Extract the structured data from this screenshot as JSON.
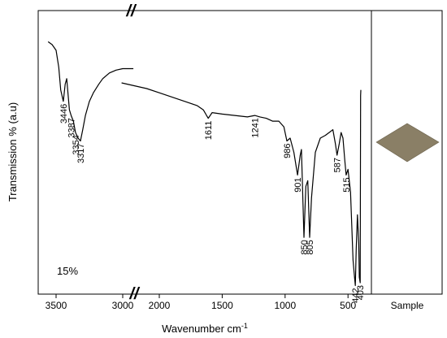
{
  "chart_data": {
    "type": "line",
    "title": "",
    "xlabel": "Wavenumber cm",
    "xlabel_superscript": "-1",
    "ylabel": "Transmission % (a.u)",
    "concentration_label": "15%",
    "sample_panel_label": "Sample",
    "sample_swatch_color": "#8a7f66",
    "axis_break_marker": "//",
    "x_axis_reversed": true,
    "x_axis_break": [
      2900,
      2300
    ],
    "xlim_segment_left": [
      3700,
      2900
    ],
    "xlim_segment_right": [
      2300,
      250
    ],
    "ylim": [
      0,
      100
    ],
    "grid": false,
    "legend": "none",
    "x_ticks": [
      {
        "value": 3500,
        "label": "3500"
      },
      {
        "value": 3000,
        "label": "3000"
      },
      {
        "value": 2000,
        "label": "2000"
      },
      {
        "value": 1500,
        "label": "1500"
      },
      {
        "value": 1000,
        "label": "1000"
      },
      {
        "value": 500,
        "label": "500"
      }
    ],
    "series": [
      {
        "color": "#000000",
        "segments": [
          {
            "x": [
              3560,
              3530,
              3500,
              3480,
              3465,
              3446,
              3432,
              3420,
              3400,
              3387,
              3370,
              3354,
              3335,
              3317,
              3300,
              3280,
              3250,
              3220,
              3180,
              3150,
              3100,
              3050,
              3000,
              2950,
              2920
            ],
            "y": [
              89,
              88,
              86,
              80,
              72,
              68,
              74,
              76,
              65,
              63,
              61,
              57,
              55,
              54,
              58,
              63,
              68,
              71,
              74,
              76,
              78,
              79,
              79.5,
              79.5,
              79.5
            ]
          },
          {
            "x": [
              2300,
              2200,
              2100,
              2000,
              1900,
              1800,
              1700,
              1650,
              1611,
              1580,
              1500,
              1400,
              1300,
              1241,
              1200,
              1150,
              1100,
              1050,
              1010,
              986,
              960,
              930,
              901,
              880,
              870,
              850,
              835,
              820,
              805,
              790,
              760,
              720,
              680,
              650,
              620,
              600,
              587,
              570,
              555,
              540,
              525,
              515,
              500,
              480,
              460,
              448,
              442,
              435,
              425,
              415,
              410,
              403,
              400,
              398
            ],
            "y": [
              74.5,
              73.5,
              72.5,
              71,
              69.5,
              68,
              66.5,
              65,
              62,
              64,
              63.5,
              63,
              62.5,
              63,
              62.5,
              62,
              61,
              61,
              59,
              54,
              55,
              50,
              42,
              49,
              51,
              20,
              38,
              40,
              20,
              34,
              50,
              55,
              56,
              57,
              58,
              53,
              49,
              53,
              57,
              55,
              47,
              42,
              44,
              36,
              12,
              6,
              3,
              16,
              28,
              18,
              6,
              4,
              70,
              72
            ]
          }
        ]
      }
    ],
    "annotations": [
      {
        "text": "3446",
        "x": 3446
      },
      {
        "text": "3387",
        "x": 3387
      },
      {
        "text": "3354",
        "x": 3354
      },
      {
        "text": "3317",
        "x": 3317
      },
      {
        "text": "1611",
        "x": 1611
      },
      {
        "text": "1241",
        "x": 1241
      },
      {
        "text": "986",
        "x": 986
      },
      {
        "text": "901",
        "x": 901
      },
      {
        "text": "850",
        "x": 850
      },
      {
        "text": "805",
        "x": 805
      },
      {
        "text": "587",
        "x": 587
      },
      {
        "text": "515",
        "x": 515
      },
      {
        "text": "442",
        "x": 442
      },
      {
        "text": "403",
        "x": 403
      }
    ]
  }
}
